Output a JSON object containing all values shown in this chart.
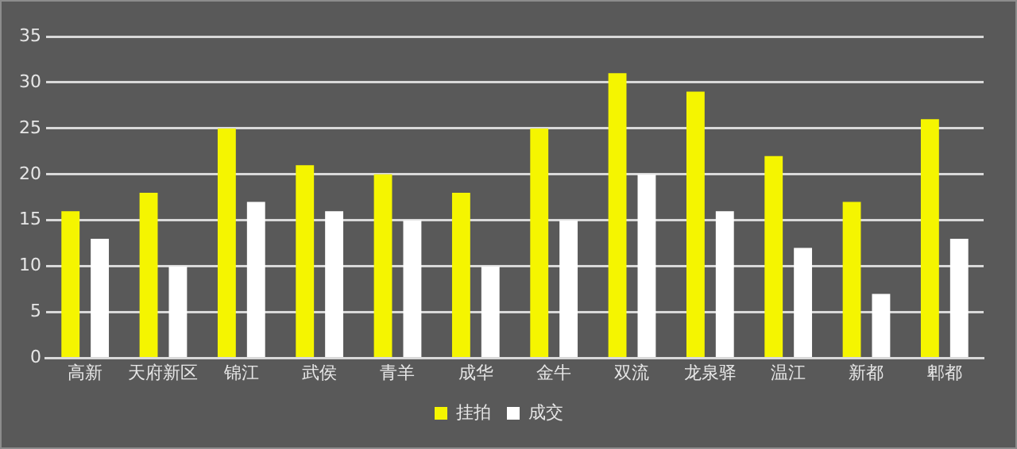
{
  "chart_data": {
    "type": "bar",
    "categories": [
      "高新",
      "天府新区",
      "锦江",
      "武侯",
      "青羊",
      "成华",
      "金牛",
      "双流",
      "龙泉驿",
      "温江",
      "新都",
      "郫都"
    ],
    "series": [
      {
        "name": "挂拍",
        "color": "#f5f500",
        "values": [
          16,
          18,
          25,
          21,
          20,
          18,
          25,
          31,
          29,
          22,
          17,
          26
        ]
      },
      {
        "name": "成交",
        "color": "#ffffff",
        "values": [
          13,
          10,
          17,
          16,
          15,
          10,
          15,
          20,
          16,
          12,
          7,
          13
        ]
      }
    ],
    "ylim": [
      0,
      35
    ],
    "yticks": [
      0,
      5,
      10,
      15,
      20,
      25,
      30,
      35
    ],
    "grid": "y",
    "legend": "bottom"
  }
}
